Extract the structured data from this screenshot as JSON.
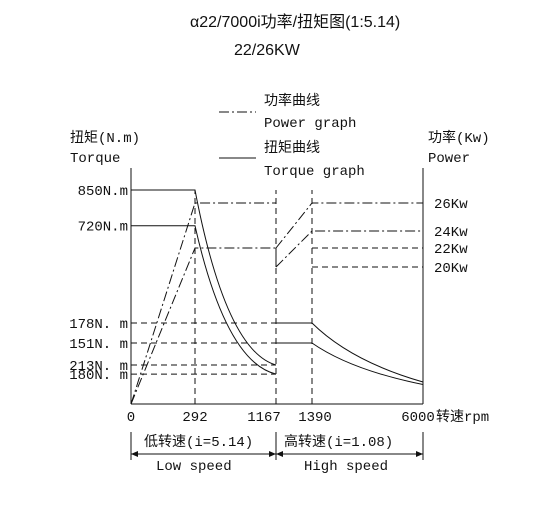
{
  "chart_data": {
    "type": "line",
    "title": "α22/7000i功率/扭矩图(1:5.14)",
    "subtitle": "22/26KW",
    "legend": {
      "placement": "top-center",
      "power_cn": "功率曲线",
      "power_en": "Power graph",
      "torque_cn": "扭矩曲线",
      "torque_en": "Torque graph"
    },
    "left_axis": {
      "label_cn": "扭矩(N.m)",
      "label_en": "Torque"
    },
    "right_axis": {
      "label_cn": "功率(Kw)",
      "label_en": "Power"
    },
    "x_axis": {
      "label": "转速rpm",
      "ticks": [
        0,
        292,
        1167,
        1390,
        6000
      ]
    },
    "torque_ticks": [
      {
        "value": 850,
        "label": "850N.m"
      },
      {
        "value": 720,
        "label": "720N.m"
      },
      {
        "value": 213,
        "label": "213N. m"
      },
      {
        "value": 180,
        "label": "180N. m"
      },
      {
        "value": 178,
        "label": "178N. m"
      },
      {
        "value": 151,
        "label": "151N. m"
      }
    ],
    "power_ticks": [
      {
        "value": 26,
        "label": "26Kw"
      },
      {
        "value": 24,
        "label": "24Kw"
      },
      {
        "value": 22,
        "label": "22Kw"
      },
      {
        "value": 20,
        "label": "20Kw"
      }
    ],
    "ranges": [
      {
        "cn": "低转速(i=5.14)",
        "en": "Low speed",
        "from": 0,
        "to": 1167
      },
      {
        "cn": "高转速(i=1.08)",
        "en": "High speed",
        "from": 1390,
        "to": 6000
      }
    ],
    "series": [
      {
        "name": "Torque graph",
        "style": "solid",
        "segment": "low-speed",
        "points": [
          [
            0,
            850
          ],
          [
            292,
            850
          ],
          [
            1167,
            213
          ]
        ]
      },
      {
        "name": "Torque graph",
        "style": "solid",
        "segment": "low-speed",
        "points": [
          [
            0,
            720
          ],
          [
            292,
            720
          ],
          [
            1167,
            180
          ]
        ]
      },
      {
        "name": "Torque graph",
        "style": "solid",
        "segment": "high-speed",
        "points": [
          [
            1167,
            178
          ],
          [
            1390,
            178
          ],
          [
            6000,
            42
          ]
        ]
      },
      {
        "name": "Torque graph",
        "style": "solid",
        "segment": "high-speed",
        "points": [
          [
            1167,
            151
          ],
          [
            1390,
            151
          ],
          [
            6000,
            35
          ]
        ]
      },
      {
        "name": "Power graph",
        "style": "dash-dot",
        "segment": "low-speed",
        "points": [
          [
            0,
            0
          ],
          [
            292,
            26
          ],
          [
            1167,
            26
          ]
        ]
      },
      {
        "name": "Power graph",
        "style": "dash-dot",
        "segment": "low-speed",
        "points": [
          [
            0,
            0
          ],
          [
            292,
            22
          ],
          [
            1167,
            22
          ]
        ]
      },
      {
        "name": "Power graph",
        "style": "dash-dot",
        "segment": "high-speed",
        "points": [
          [
            1167,
            22
          ],
          [
            1390,
            26
          ],
          [
            6000,
            26
          ]
        ]
      },
      {
        "name": "Power graph",
        "style": "dash-dot",
        "segment": "high-speed",
        "points": [
          [
            1167,
            20
          ],
          [
            1390,
            24
          ],
          [
            6000,
            24
          ]
        ]
      }
    ],
    "grid": false
  }
}
